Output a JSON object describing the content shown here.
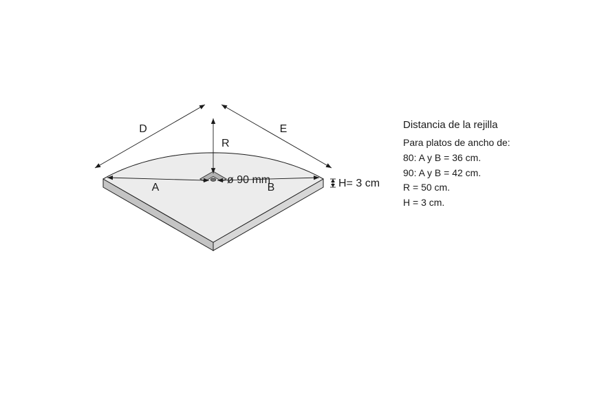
{
  "diagram": {
    "type": "isometric-technical-drawing",
    "background_color": "#ffffff",
    "surface_fill": "#ececec",
    "surface_stroke": "#1a1a1a",
    "edge_fill_light": "#d7d7d7",
    "edge_fill_dark": "#c4c4c4",
    "drain_fill": "#b2b2b2",
    "stroke_width_main": 1.0,
    "stroke_width_dim": 0.9,
    "label_font_size": 16,
    "labels": {
      "D": "D",
      "E": "E",
      "R": "R",
      "A": "A",
      "B": "B",
      "diameter": "ø 90 mm",
      "H": "H= 3 cm"
    },
    "arrow": {
      "len": 8,
      "half": 3.2
    }
  },
  "text": {
    "title": "Distancia de  la rejilla",
    "lines": [
      "Para platos de ancho de:",
      "80: A y B = 36 cm.",
      "90: A y B = 42 cm.",
      "R = 50 cm.",
      "H = 3 cm."
    ]
  }
}
